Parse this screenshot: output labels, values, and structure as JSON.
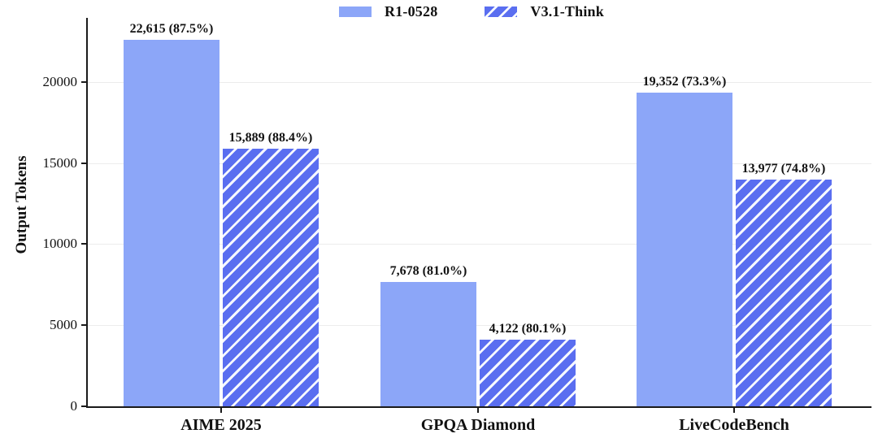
{
  "chart_data": {
    "type": "bar",
    "title": "",
    "xlabel": "",
    "ylabel": "Output Tokens",
    "categories": [
      "AIME 2025",
      "GPQA Diamond",
      "LiveCodeBench"
    ],
    "series": [
      {
        "name": "R1-0528",
        "style": "solid",
        "values": [
          22615,
          7678,
          19352
        ],
        "labels": [
          "22,615 (87.5%)",
          "7,678 (81.0%)",
          "19,352 (73.3%)"
        ]
      },
      {
        "name": "V3.1-Think",
        "style": "hatched",
        "values": [
          15889,
          4122,
          13977
        ],
        "labels": [
          "15,889 (88.4%)",
          "4,122 (80.1%)",
          "13,977 (74.8%)"
        ]
      }
    ],
    "ylim": [
      0,
      23950
    ],
    "yticks": [
      0,
      5000,
      10000,
      15000,
      20000
    ],
    "ytick_labels": [
      "0",
      "5000",
      "10000",
      "15000",
      "20000"
    ],
    "grid": "horizontal",
    "legend_position": "top-center",
    "colors": {
      "solid_bar": "#8ca6f8",
      "hatched_bar_base": "#5a6ef0",
      "hatch_stripe": "#f6f8ff",
      "gridline": "#ececec",
      "axis": "#1a1a1a",
      "text": "#111111"
    }
  }
}
